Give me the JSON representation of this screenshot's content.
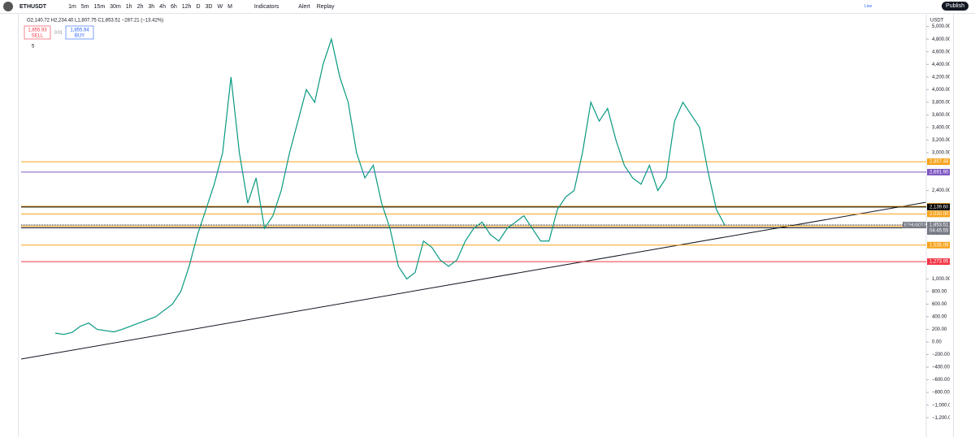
{
  "toolbar": {
    "symbol": "ETHUSDT",
    "intervals": [
      "1m",
      "5m",
      "15m",
      "30m",
      "1h",
      "2h",
      "3h",
      "4h",
      "6h",
      "12h",
      "D",
      "3D",
      "W",
      "M"
    ],
    "indicators": "Indicators",
    "alert": "Alert",
    "replay": "Replay",
    "publish": "Publish",
    "live": "Live"
  },
  "legend": {
    "ohlc": "O2,140.72 H2,234.40 L1,807.75 C1,853.51 −287.21 (−13.42%)",
    "sell_price": "1,855.93",
    "sell": "SELL",
    "spread": "0.01",
    "buy_price": "1,855.94",
    "buy": "BUY",
    "indicators_count": "5"
  },
  "price_scale": {
    "currency": "USDT",
    "ylim": [
      -1300,
      5150
    ],
    "ticks": [
      {
        "value": 5000,
        "label": "5,000.00"
      },
      {
        "value": 4800,
        "label": "4,800.00"
      },
      {
        "value": 4600,
        "label": "4,600.00"
      },
      {
        "value": 4400,
        "label": "4,400.00"
      },
      {
        "value": 4200,
        "label": "4,200.00"
      },
      {
        "value": 4000,
        "label": "4,000.00"
      },
      {
        "value": 3800,
        "label": "3,800.00"
      },
      {
        "value": 3600,
        "label": "3,600.00"
      },
      {
        "value": 3400,
        "label": "3,400.00"
      },
      {
        "value": 3200,
        "label": "3,200.00"
      },
      {
        "value": 3000,
        "label": "3,000.00"
      },
      {
        "value": 2400,
        "label": "2,400.00"
      },
      {
        "value": 1000,
        "label": "1,000.00"
      },
      {
        "value": 800,
        "label": "800.00"
      },
      {
        "value": 600,
        "label": "600.00"
      },
      {
        "value": 400,
        "label": "400.00"
      },
      {
        "value": 200,
        "label": "200.00"
      },
      {
        "value": 0,
        "label": "0.00"
      },
      {
        "value": -200,
        "label": "−200.00"
      },
      {
        "value": -400,
        "label": "−400.00"
      },
      {
        "value": -600,
        "label": "−600.00"
      },
      {
        "value": -800,
        "label": "−800.00"
      },
      {
        "value": -1000,
        "label": "−1,000.00"
      },
      {
        "value": -1200,
        "label": "−1,200.00"
      }
    ]
  },
  "levels": [
    {
      "value": 2857.48,
      "label": "2,857.48",
      "color": "#f7a21b"
    },
    {
      "value": 2691.9,
      "label": "2,691.90",
      "color": "#7e57c2"
    },
    {
      "value": 2151,
      "label": "2,151.00",
      "color": "#f7a21b"
    },
    {
      "value": 2139.6,
      "label": "2,139.60",
      "color": "#000000"
    },
    {
      "value": 2030,
      "label": "2,030.00",
      "color": "#f7a21b"
    },
    {
      "value": 1836,
      "label": "1,836.00",
      "color": "#f7a21b"
    },
    {
      "value": 1810.7,
      "label": "1,810.70",
      "color": "#000000"
    },
    {
      "value": 1535.09,
      "label": "1,535.09",
      "color": "#f7a21b"
    },
    {
      "value": 1273.95,
      "label": "1,273.95",
      "color": "#f23645"
    }
  ],
  "last_price": {
    "value": 1853.51,
    "symbol": "ETHUSDT.P",
    "label": "1,853.51",
    "countdown": "04:45:55"
  },
  "price_path": {
    "color": "#089981",
    "values": [
      140,
      120,
      150,
      250,
      300,
      200,
      180,
      160,
      200,
      250,
      300,
      350,
      400,
      500,
      600,
      800,
      1200,
      1700,
      2100,
      2500,
      3000,
      4200,
      3000,
      2200,
      2600,
      1800,
      2000,
      2400,
      3000,
      3500,
      4000,
      3800,
      4400,
      4800,
      4200,
      3800,
      3000,
      2600,
      2800,
      2200,
      1800,
      1200,
      1000,
      1100,
      1600,
      1500,
      1300,
      1200,
      1300,
      1600,
      1800,
      1900,
      1700,
      1600,
      1800,
      1900,
      2000,
      1800,
      1600,
      1600,
      2100,
      2300,
      2400,
      3000,
      3800,
      3500,
      3700,
      3200,
      2800,
      2600,
      2500,
      2800,
      2400,
      2600,
      3500,
      3800,
      3600,
      3400,
      2700,
      2100,
      1853.51
    ]
  }
}
